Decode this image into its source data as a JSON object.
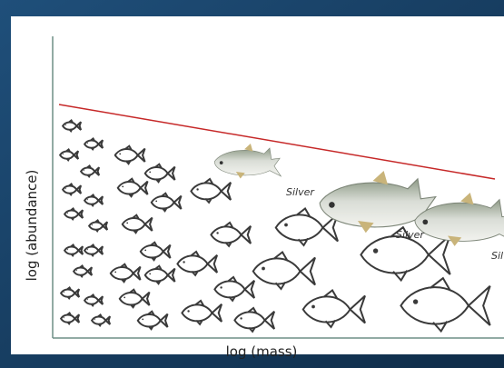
{
  "axis_labels": {
    "y": "log (abundance)",
    "x": "log (mass)"
  },
  "species_labels": [
    "Silver",
    "Silver",
    "Silver"
  ]
}
